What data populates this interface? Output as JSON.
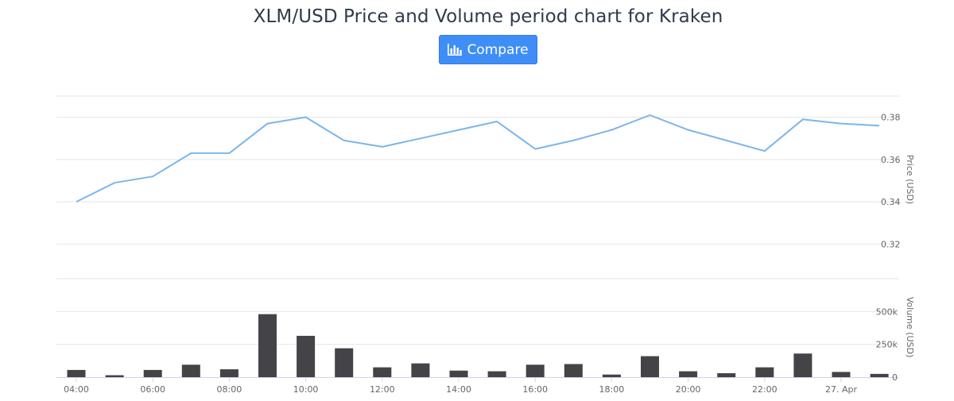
{
  "header": {
    "title": "XLM/USD Price and Volume period chart for Kraken",
    "compare_label": "Compare",
    "compare_icon": "bar-chart-icon"
  },
  "colors": {
    "accent": "#3f8ef8",
    "price_line": "#7cb5ec",
    "volume_bar": "#434348",
    "grid": "#e6e6e6"
  },
  "chart_data": {
    "type": "line",
    "x": [
      "04:00",
      "05:00",
      "06:00",
      "07:00",
      "08:00",
      "09:00",
      "10:00",
      "11:00",
      "12:00",
      "13:00",
      "14:00",
      "15:00",
      "16:00",
      "17:00",
      "18:00",
      "19:00",
      "20:00",
      "21:00",
      "22:00",
      "23:00",
      "00:00",
      "01:00"
    ],
    "x_tick_labels": [
      "04:00",
      "06:00",
      "08:00",
      "10:00",
      "12:00",
      "14:00",
      "16:00",
      "18:00",
      "20:00",
      "22:00",
      "27. Apr"
    ],
    "series": [
      {
        "type": "line",
        "values": [
          0.34,
          0.349,
          0.352,
          0.363,
          0.363,
          0.377,
          0.38,
          0.369,
          0.366,
          0.37,
          0.374,
          0.378,
          0.365,
          0.369,
          0.374,
          0.381,
          0.374,
          0.369,
          0.364,
          0.379,
          0.377,
          0.376
        ]
      },
      {
        "type": "bar",
        "values": [
          55000,
          15000,
          55000,
          95000,
          60000,
          480000,
          315000,
          220000,
          75000,
          105000,
          50000,
          45000,
          95000,
          100000,
          20000,
          160000,
          45000,
          30000,
          75000,
          180000,
          40000,
          25000
        ]
      }
    ],
    "price_axis": {
      "title": "Price (USD)",
      "ticks": [
        "0.32",
        "0.34",
        "0.36",
        "0.38"
      ],
      "range": [
        0.31,
        0.39
      ]
    },
    "volume_axis": {
      "title": "Volume (USD)",
      "ticks": [
        "0",
        "250k",
        "500k"
      ],
      "range": [
        0,
        750000
      ]
    },
    "grid": true,
    "legend": "none"
  }
}
